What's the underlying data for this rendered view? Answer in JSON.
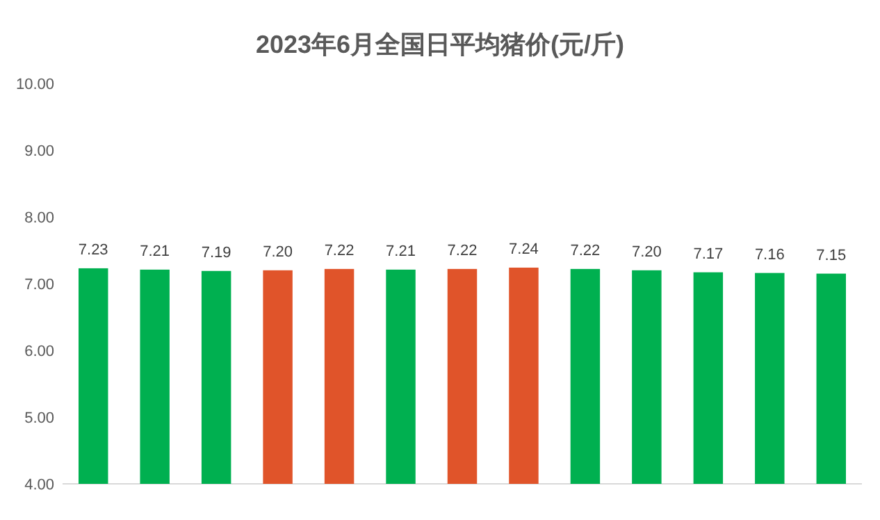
{
  "chart_data": {
    "type": "bar",
    "title": "2023年6月全国日平均猪价(元/斤)",
    "categories": [
      null,
      null,
      null,
      null,
      null,
      null,
      null,
      null,
      null,
      null,
      null,
      null,
      null
    ],
    "values": [
      7.23,
      7.21,
      7.19,
      7.2,
      7.22,
      7.21,
      7.22,
      7.24,
      7.22,
      7.2,
      7.17,
      7.16,
      7.15
    ],
    "value_labels": [
      "7.23",
      "7.21",
      "7.19",
      "7.20",
      "7.22",
      "7.21",
      "7.22",
      "7.24",
      "7.22",
      "7.20",
      "7.17",
      "7.16",
      "7.15"
    ],
    "colors": [
      "#00b050",
      "#00b050",
      "#00b050",
      "#e0542a",
      "#e0542a",
      "#00b050",
      "#e0542a",
      "#e0542a",
      "#00b050",
      "#00b050",
      "#00b050",
      "#00b050",
      "#00b050"
    ],
    "ylim": [
      4,
      10
    ],
    "yticks": [
      {
        "value": 4,
        "label": "4.00"
      },
      {
        "value": 5,
        "label": "5.00"
      },
      {
        "value": 6,
        "label": "6.00"
      },
      {
        "value": 7,
        "label": "7.00"
      },
      {
        "value": 8,
        "label": "8.00"
      },
      {
        "value": 9,
        "label": "9.00"
      },
      {
        "value": 10,
        "label": "10.00"
      }
    ],
    "grid": false
  }
}
